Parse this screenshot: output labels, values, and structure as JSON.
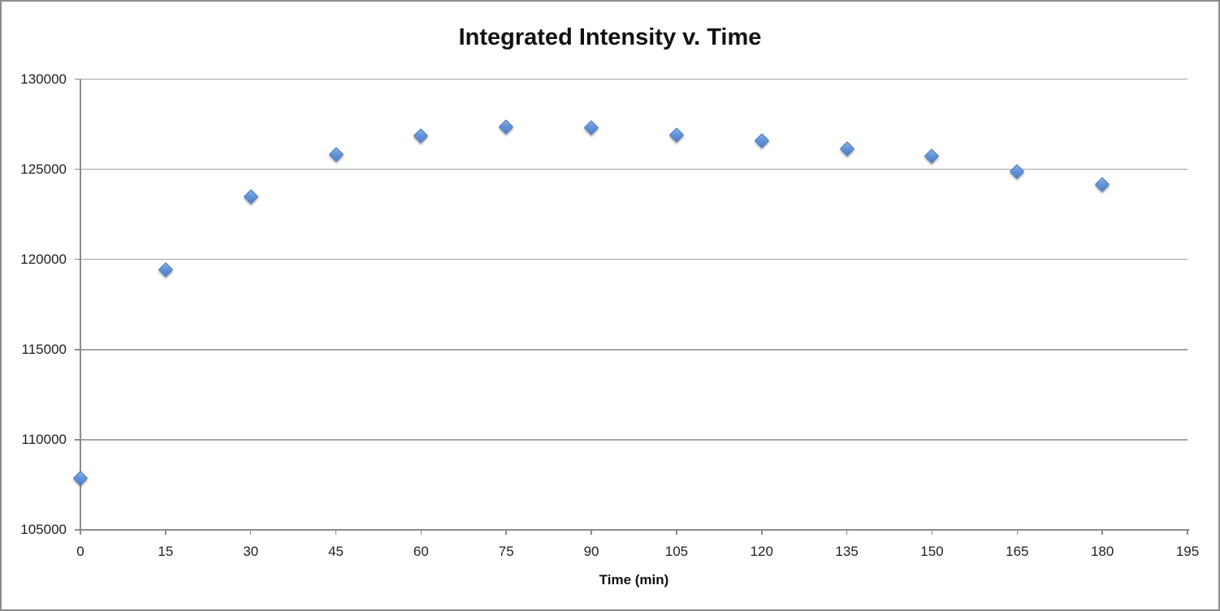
{
  "chart_data": {
    "type": "scatter",
    "title": "Integrated Intensity v. Time",
    "xlabel": "Time (min)",
    "ylabel": "",
    "x": [
      0,
      15,
      30,
      45,
      60,
      75,
      90,
      105,
      120,
      135,
      150,
      165,
      180
    ],
    "y": [
      107900,
      119450,
      123500,
      125850,
      126850,
      127350,
      127300,
      126900,
      126600,
      126150,
      125750,
      124900,
      124150
    ],
    "x_ticks": [
      0,
      15,
      30,
      45,
      60,
      75,
      90,
      105,
      120,
      135,
      150,
      165,
      180,
      195
    ],
    "y_ticks": [
      105000,
      110000,
      115000,
      120000,
      125000,
      130000
    ],
    "xlim": [
      0,
      195
    ],
    "ylim": [
      105000,
      130000
    ],
    "grid": "horizontal-only",
    "legend": "none",
    "marker": {
      "shape": "diamond",
      "fill": "#6495d9",
      "fill_highlight": "#8ab1e9",
      "border": "#3a6db8"
    },
    "colors": {
      "gridline": "#a3a3a3",
      "axis": "#8c8c8c",
      "tick_text": "#1f1f1f",
      "title_text": "#111111",
      "frame_border": "#8c8c8c",
      "background": "#ffffff"
    }
  }
}
